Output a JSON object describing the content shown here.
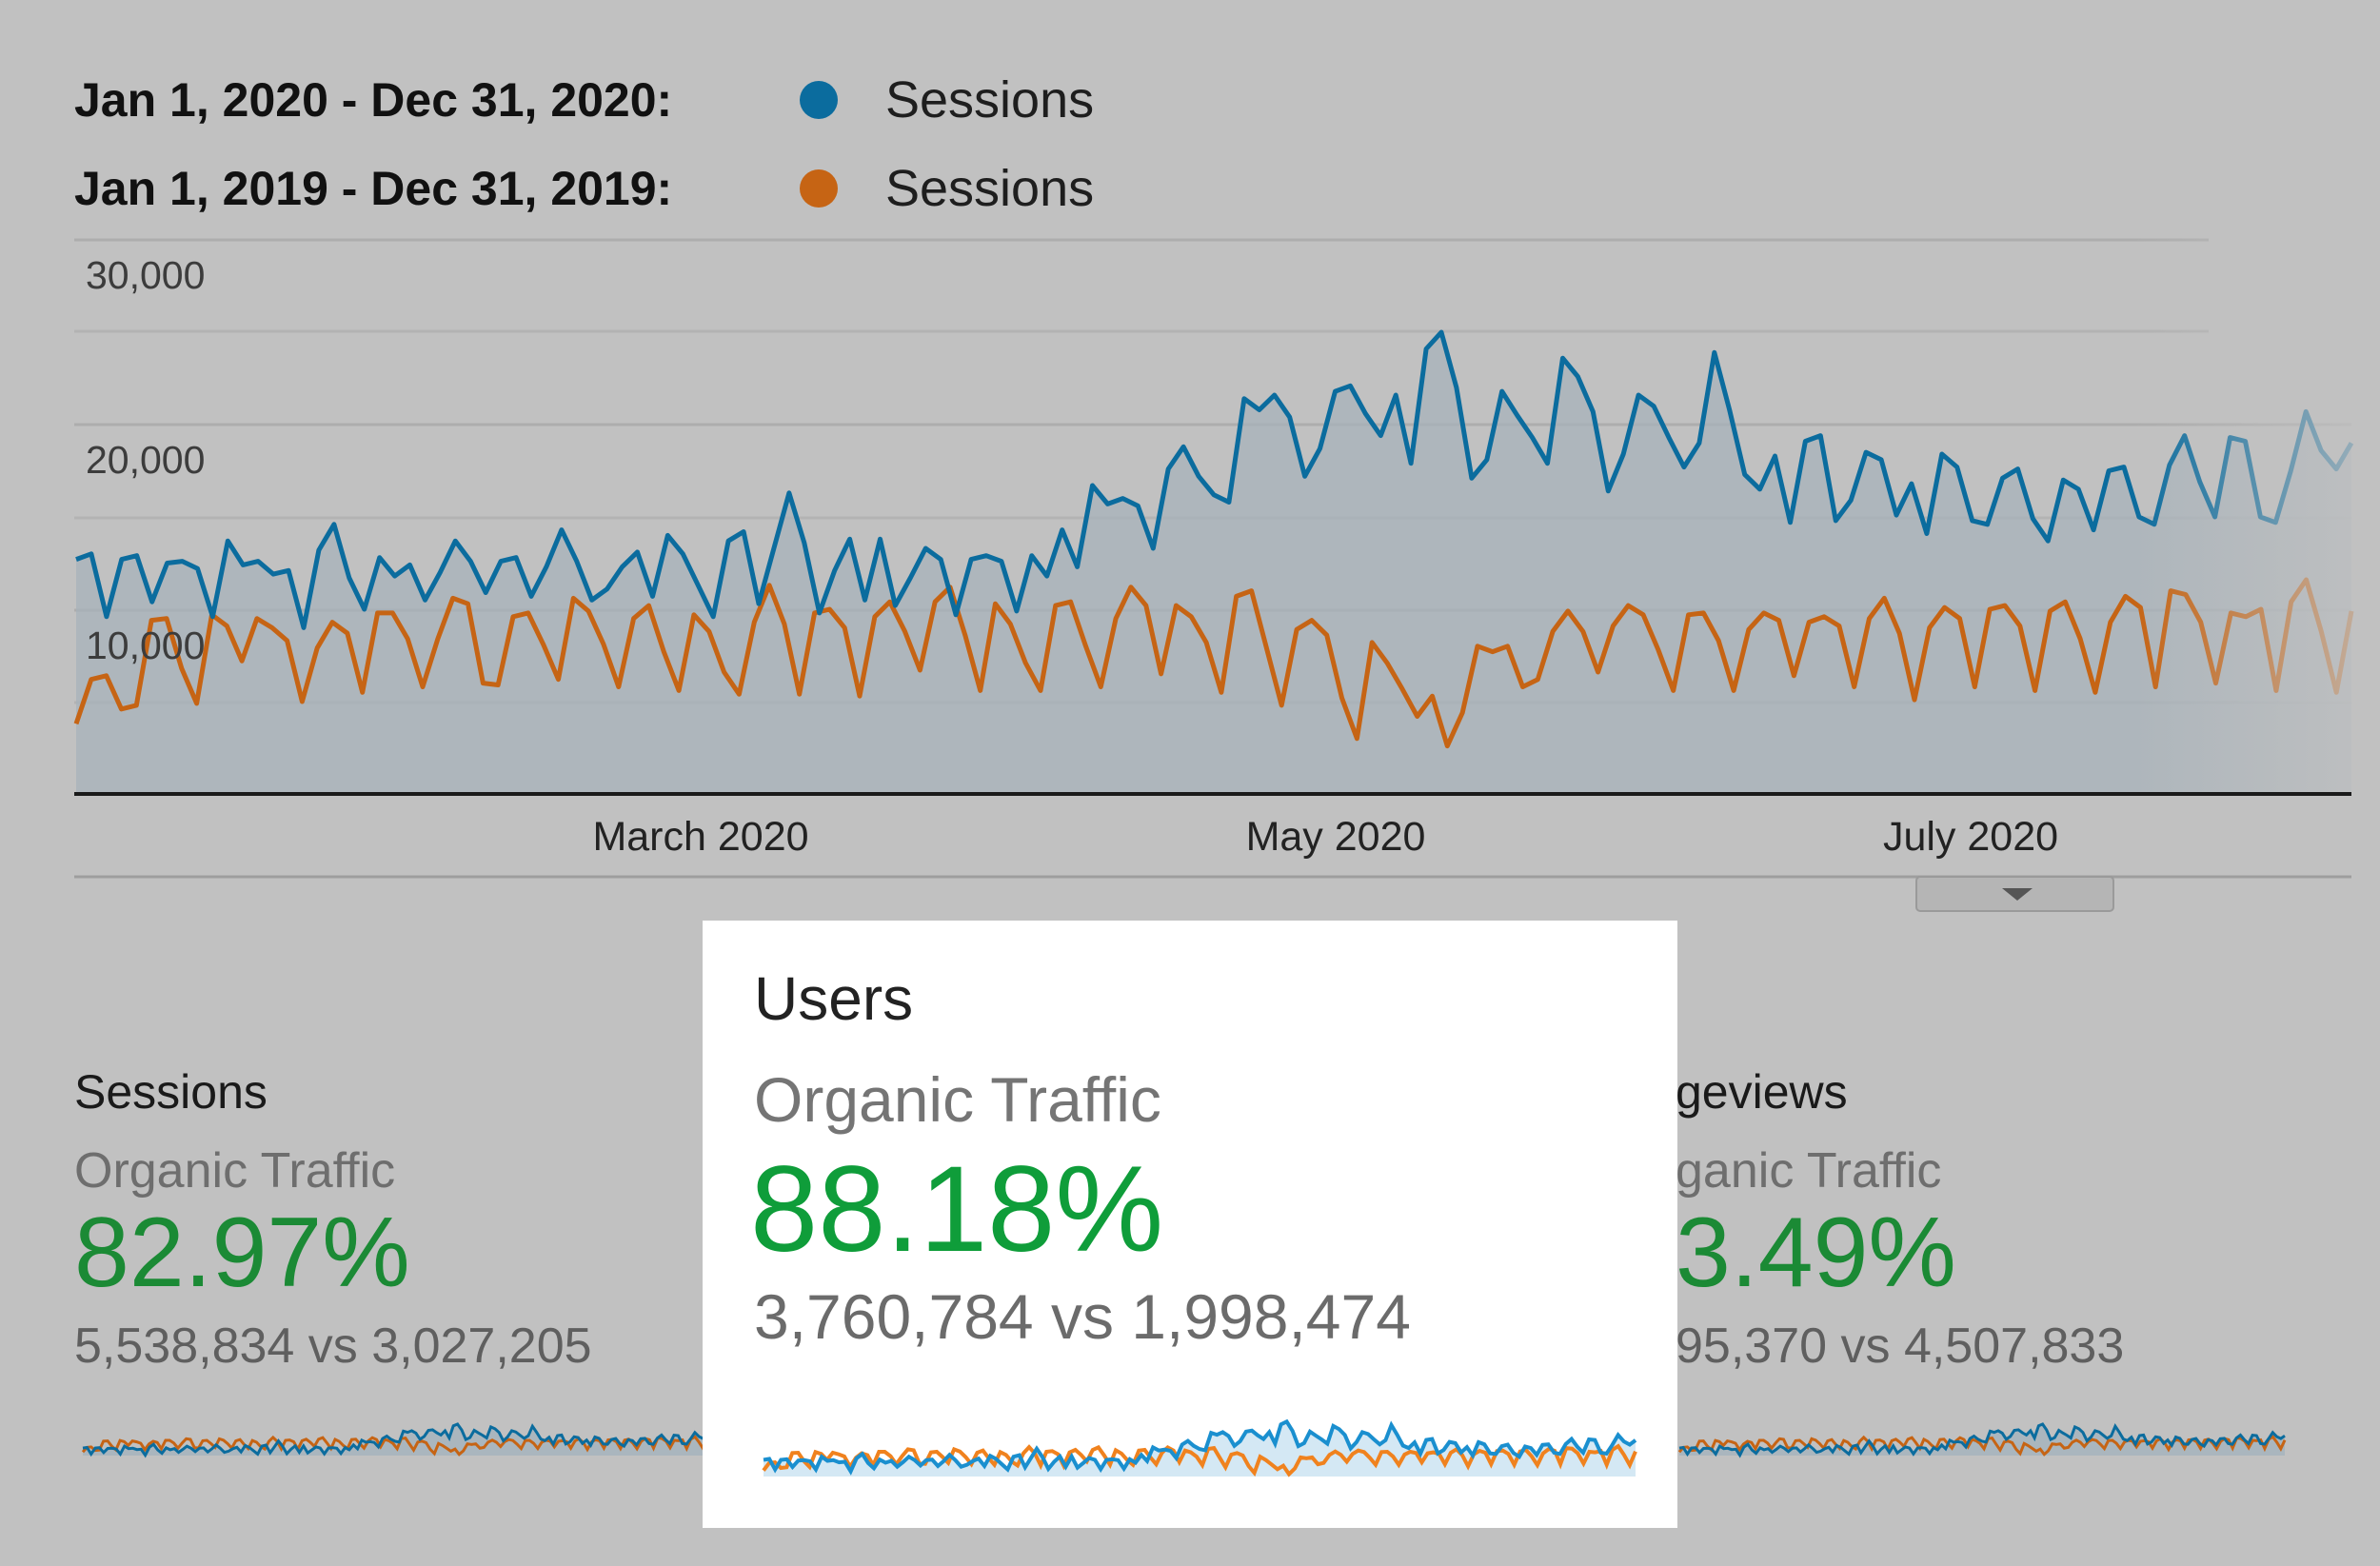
{
  "legend": [
    {
      "range": "Jan 1, 2020 - Dec 31, 2020:",
      "series": "Sessions",
      "color": "#0b6c9e"
    },
    {
      "range": "Jan 1, 2019 - Dec 31, 2019:",
      "series": "Sessions",
      "color": "#c66414"
    }
  ],
  "chart_data": {
    "type": "line",
    "y_ticks": [
      "30,000",
      "20,000",
      "10,000"
    ],
    "ylim": [
      0,
      30000
    ],
    "x_ticks": [
      "March 2020",
      "May 2020",
      "July 2020"
    ],
    "grid": true,
    "series": [
      {
        "name": "Sessions",
        "period": "Jan 1, 2020 - Dec 31, 2020",
        "color": "#0b6c9e",
        "values": [
          12700,
          13000,
          9600,
          12700,
          12900,
          10400,
          12500,
          12600,
          12200,
          9600,
          13700,
          12400,
          12600,
          11900,
          12100,
          9000,
          13200,
          14600,
          11700,
          10000,
          12800,
          11800,
          12400,
          10500,
          12000,
          13700,
          12600,
          10900,
          12600,
          12800,
          10700,
          12300,
          14300,
          12600,
          10500,
          11100,
          12300,
          13100,
          10700,
          14000,
          13000,
          11300,
          9600,
          13700,
          14200,
          10300,
          13300,
          16300,
          13600,
          9800,
          12100,
          13800,
          10500,
          13800,
          10200,
          11700,
          13300,
          12700,
          9700,
          12700,
          12900,
          12600,
          9900,
          12900,
          11800,
          14300,
          12300,
          16700,
          15700,
          16000,
          15600,
          13300,
          17600,
          18800,
          17200,
          16200,
          15800,
          21400,
          20800,
          21600,
          20400,
          17200,
          18700,
          21800,
          22100,
          20600,
          19400,
          21600,
          17900,
          24100,
          25000,
          22000,
          17100,
          18100,
          21800,
          20500,
          19300,
          17900,
          23600,
          22600,
          20700,
          16400,
          18400,
          21600,
          21000,
          19300,
          17700,
          19000,
          23900,
          20800,
          17300,
          16500,
          18300,
          14700,
          19100,
          19400,
          14800,
          15900,
          18500,
          18100,
          15100,
          16800,
          14100,
          18400,
          17700,
          14800,
          14600,
          17100,
          17600,
          14900,
          13700,
          17000,
          16500,
          14300,
          17500,
          17700,
          15000,
          14600,
          17800,
          19400,
          16900,
          15000,
          19300,
          19100,
          15000,
          14700,
          17500,
          20700,
          18600,
          17600,
          19000
        ]
      },
      {
        "name": "Sessions",
        "period": "Jan 1, 2019 - Dec 31, 2019",
        "color": "#c66414",
        "values": [
          3800,
          6200,
          6400,
          4600,
          4800,
          9400,
          9500,
          6800,
          4900,
          9700,
          9100,
          7200,
          9500,
          9000,
          8300,
          5000,
          7900,
          9300,
          8700,
          5500,
          9800,
          9800,
          8400,
          5800,
          8400,
          10600,
          10300,
          6000,
          5900,
          9600,
          9800,
          8100,
          6200,
          10600,
          9900,
          8100,
          5800,
          9500,
          10200,
          7700,
          5600,
          9700,
          8800,
          6600,
          5400,
          9300,
          11300,
          9200,
          5400,
          9800,
          10000,
          9000,
          5300,
          9600,
          10400,
          8800,
          6700,
          10400,
          11200,
          8600,
          5600,
          10300,
          9200,
          7100,
          5600,
          10200,
          10400,
          8000,
          5800,
          9500,
          11200,
          10200,
          6500,
          10200,
          9600,
          8200,
          5500,
          10700,
          11000,
          7900,
          4800,
          8900,
          9400,
          8600,
          5200,
          3000,
          8200,
          7100,
          5700,
          4200,
          5300,
          2600,
          4400,
          8000,
          7700,
          8000,
          5800,
          6200,
          8800,
          9900,
          8800,
          6600,
          9100,
          10200,
          9700,
          7800,
          5600,
          9700,
          9800,
          8300,
          5600,
          8900,
          9800,
          9400,
          6400,
          9300,
          9600,
          9100,
          5800,
          9500,
          10600,
          8700,
          5100,
          9000,
          10100,
          9500,
          5800,
          10000,
          10200,
          9100,
          5600,
          9900,
          10400,
          8400,
          5500,
          9300,
          10700,
          10100,
          5800,
          11000,
          10800,
          9300,
          6000,
          9800,
          9600,
          10000,
          5600,
          10400,
          11600,
          8800,
          5500,
          9900
        ]
      }
    ]
  },
  "metrics": {
    "sessions": {
      "title": "Sessions",
      "subtitle": "Organic Traffic",
      "percent": "82.97%",
      "comparison": "5,538,834 vs 3,027,205"
    },
    "users": {
      "title": "Users",
      "subtitle": "Organic Traffic",
      "percent": "88.18%",
      "comparison": "3,760,784 vs 1,998,474"
    },
    "pageviews": {
      "title": "geviews",
      "subtitle": "ganic Traffic",
      "percent": "3.49%",
      "comparison": "95,370 vs 4,507,833"
    }
  },
  "colors": {
    "background": "#c1c1c1",
    "current_year": "#0b6c9e",
    "previous_year": "#c66414",
    "positive_change": "#1b8a35",
    "card": "#ffffff"
  }
}
